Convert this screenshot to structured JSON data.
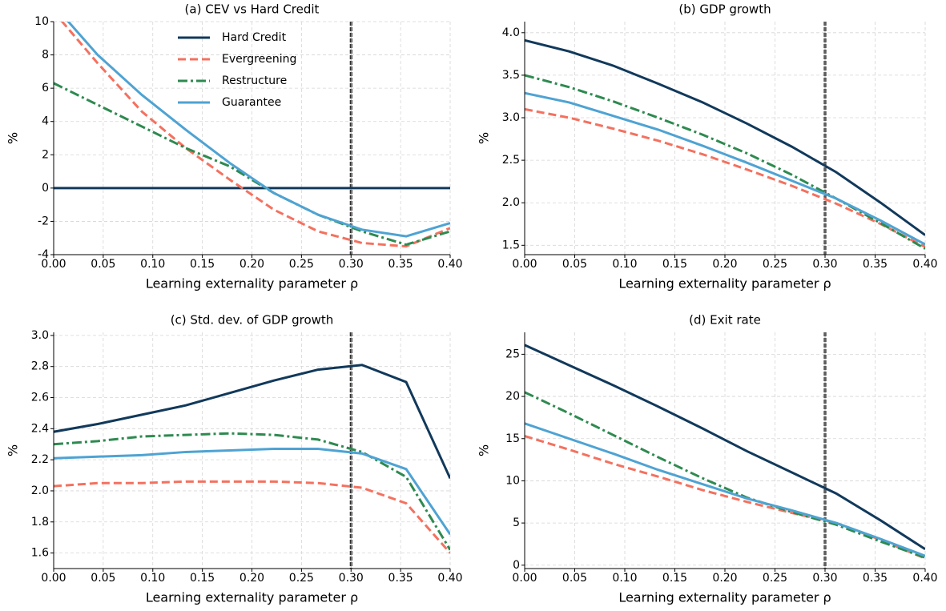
{
  "chart_data": [
    {
      "type": "line",
      "title": "(a) CEV vs Hard Credit",
      "xlabel": "Learning externality parameter ρ",
      "ylabel": "%",
      "x": [
        0,
        0.0444,
        0.0889,
        0.1333,
        0.1778,
        0.2222,
        0.2667,
        0.3111,
        0.3556,
        0.4
      ],
      "xlim": [
        0,
        0.4
      ],
      "ylim": [
        -4,
        10
      ],
      "xticks": [
        {
          "value": 0,
          "label": "0.00"
        },
        {
          "value": 0.05,
          "label": "0.05"
        },
        {
          "value": 0.1,
          "label": "0.10"
        },
        {
          "value": 0.15,
          "label": "0.15"
        },
        {
          "value": 0.2,
          "label": "0.20"
        },
        {
          "value": 0.25,
          "label": "0.25"
        },
        {
          "value": 0.3,
          "label": "0.30"
        },
        {
          "value": 0.35,
          "label": "0.35"
        },
        {
          "value": 0.4,
          "label": "0.40"
        }
      ],
      "yticks": [
        -4,
        -2,
        0,
        2,
        4,
        6,
        8,
        10
      ],
      "grid": true,
      "vline": 0.3,
      "legend": "upper center",
      "series": [
        {
          "name": "Hard Credit",
          "color": "#11395b",
          "dash": "solid",
          "values": [
            0,
            0,
            0,
            0,
            0,
            0,
            0,
            0,
            0,
            0
          ]
        },
        {
          "name": "Evergreening",
          "color": "#f4715f",
          "dash": "dashed",
          "values": [
            10.6,
            7.5,
            4.6,
            2.4,
            0.5,
            -1.3,
            -2.6,
            -3.3,
            -3.5,
            -2.4
          ]
        },
        {
          "name": "Restructure",
          "color": "#2e8a50",
          "dash": "dashdot",
          "values": [
            6.3,
            5.0,
            3.7,
            2.4,
            1.3,
            -0.3,
            -1.6,
            -2.6,
            -3.4,
            -2.6
          ]
        },
        {
          "name": "Guarantee",
          "color": "#4ea3d3",
          "dash": "solid",
          "values": [
            11.0,
            8.0,
            5.6,
            3.5,
            1.5,
            -0.3,
            -1.6,
            -2.5,
            -2.9,
            -2.1
          ]
        }
      ]
    },
    {
      "type": "line",
      "title": "(b) GDP growth",
      "xlabel": "Learning externality parameter ρ",
      "ylabel": "%",
      "x": [
        0,
        0.0444,
        0.0889,
        0.1333,
        0.1778,
        0.2222,
        0.2667,
        0.3111,
        0.3556,
        0.4
      ],
      "xlim": [
        0,
        0.4
      ],
      "ylim": [
        1.39,
        4.13
      ],
      "xticks": [
        {
          "value": 0,
          "label": "0.00"
        },
        {
          "value": 0.05,
          "label": "0.05"
        },
        {
          "value": 0.1,
          "label": "0.10"
        },
        {
          "value": 0.15,
          "label": "0.15"
        },
        {
          "value": 0.2,
          "label": "0.20"
        },
        {
          "value": 0.25,
          "label": "0.25"
        },
        {
          "value": 0.3,
          "label": "0.30"
        },
        {
          "value": 0.35,
          "label": "0.35"
        },
        {
          "value": 0.4,
          "label": "0.40"
        }
      ],
      "yticks": [
        1.5,
        {
          "value": 2,
          "label": "2.0"
        },
        2.5,
        {
          "value": 3,
          "label": "3.0"
        },
        3.5,
        {
          "value": 4,
          "label": "4.0"
        }
      ],
      "grid": true,
      "vline": 0.3,
      "series": [
        {
          "name": "Hard Credit",
          "color": "#11395b",
          "dash": "solid",
          "values": [
            3.91,
            3.78,
            3.61,
            3.4,
            3.18,
            2.93,
            2.66,
            2.36,
            2.0,
            1.62
          ]
        },
        {
          "name": "Evergreening",
          "color": "#f4715f",
          "dash": "dashed",
          "values": [
            3.1,
            3.0,
            2.87,
            2.73,
            2.57,
            2.39,
            2.2,
            1.99,
            1.75,
            1.48
          ]
        },
        {
          "name": "Restructure",
          "color": "#2e8a50",
          "dash": "dashdot",
          "values": [
            3.5,
            3.36,
            3.19,
            3.0,
            2.8,
            2.58,
            2.33,
            2.05,
            1.76,
            1.46
          ]
        },
        {
          "name": "Guarantee",
          "color": "#4ea3d3",
          "dash": "solid",
          "values": [
            3.29,
            3.18,
            3.02,
            2.86,
            2.67,
            2.47,
            2.26,
            2.05,
            1.79,
            1.51
          ]
        }
      ]
    },
    {
      "type": "line",
      "title": "(c) Std. dev. of GDP growth",
      "xlabel": "Learning externality parameter ρ",
      "ylabel": "%",
      "x": [
        0,
        0.0444,
        0.0889,
        0.1333,
        0.1778,
        0.2222,
        0.2667,
        0.3111,
        0.3556,
        0.4
      ],
      "xlim": [
        0,
        0.4
      ],
      "ylim": [
        1.5,
        3.02
      ],
      "xticks": [
        {
          "value": 0,
          "label": "0.00"
        },
        {
          "value": 0.05,
          "label": "0.05"
        },
        {
          "value": 0.1,
          "label": "0.10"
        },
        {
          "value": 0.15,
          "label": "0.15"
        },
        {
          "value": 0.2,
          "label": "0.20"
        },
        {
          "value": 0.25,
          "label": "0.25"
        },
        {
          "value": 0.3,
          "label": "0.30"
        },
        {
          "value": 0.35,
          "label": "0.35"
        },
        {
          "value": 0.4,
          "label": "0.40"
        }
      ],
      "yticks": [
        1.6,
        1.8,
        {
          "value": 2,
          "label": "2.0"
        },
        2.2,
        2.4,
        2.6,
        2.8,
        {
          "value": 3,
          "label": "3.0"
        }
      ],
      "grid": true,
      "vline": 0.3,
      "series": [
        {
          "name": "Hard Credit",
          "color": "#11395b",
          "dash": "solid",
          "values": [
            2.38,
            2.43,
            2.49,
            2.55,
            2.63,
            2.71,
            2.78,
            2.81,
            2.7,
            2.08
          ]
        },
        {
          "name": "Evergreening",
          "color": "#f4715f",
          "dash": "dashed",
          "values": [
            2.03,
            2.05,
            2.05,
            2.06,
            2.06,
            2.06,
            2.05,
            2.02,
            1.92,
            1.6
          ]
        },
        {
          "name": "Restructure",
          "color": "#2e8a50",
          "dash": "dashdot",
          "values": [
            2.3,
            2.32,
            2.35,
            2.36,
            2.37,
            2.36,
            2.33,
            2.25,
            2.09,
            1.62
          ]
        },
        {
          "name": "Guarantee",
          "color": "#4ea3d3",
          "dash": "solid",
          "values": [
            2.21,
            2.22,
            2.23,
            2.25,
            2.26,
            2.27,
            2.27,
            2.24,
            2.14,
            1.72
          ]
        }
      ]
    },
    {
      "type": "line",
      "title": "(d) Exit rate",
      "xlabel": "Learning externality parameter ρ",
      "ylabel": "%",
      "x": [
        0,
        0.0444,
        0.0889,
        0.1333,
        0.1778,
        0.2222,
        0.2667,
        0.3111,
        0.3556,
        0.4
      ],
      "xlim": [
        0,
        0.4
      ],
      "ylim": [
        -0.4,
        27.6
      ],
      "xticks": [
        {
          "value": 0,
          "label": "0.00"
        },
        {
          "value": 0.05,
          "label": "0.05"
        },
        {
          "value": 0.1,
          "label": "0.10"
        },
        {
          "value": 0.15,
          "label": "0.15"
        },
        {
          "value": 0.2,
          "label": "0.20"
        },
        {
          "value": 0.25,
          "label": "0.25"
        },
        {
          "value": 0.3,
          "label": "0.30"
        },
        {
          "value": 0.35,
          "label": "0.35"
        },
        {
          "value": 0.4,
          "label": "0.40"
        }
      ],
      "yticks": [
        0,
        5,
        10,
        15,
        20,
        25
      ],
      "grid": true,
      "vline": 0.3,
      "series": [
        {
          "name": "Hard Credit",
          "color": "#11395b",
          "dash": "solid",
          "values": [
            26.1,
            23.7,
            21.3,
            18.8,
            16.2,
            13.5,
            11.0,
            8.5,
            5.3,
            1.9
          ]
        },
        {
          "name": "Evergreening",
          "color": "#f4715f",
          "dash": "dashed",
          "values": [
            15.3,
            13.7,
            12.0,
            10.5,
            8.9,
            7.5,
            6.2,
            5.0,
            3.0,
            0.8
          ]
        },
        {
          "name": "Restructure",
          "color": "#2e8a50",
          "dash": "dashdot",
          "values": [
            20.5,
            18.0,
            15.4,
            12.8,
            10.3,
            8.0,
            6.3,
            4.8,
            2.8,
            0.9
          ]
        },
        {
          "name": "Guarantee",
          "color": "#4ea3d3",
          "dash": "solid",
          "values": [
            16.8,
            15.0,
            13.2,
            11.3,
            9.6,
            7.9,
            6.5,
            5.0,
            3.1,
            1.1
          ]
        }
      ]
    }
  ]
}
